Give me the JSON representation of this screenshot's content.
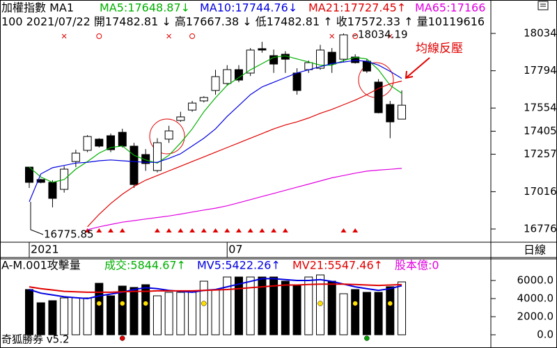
{
  "chart_data": [
    {
      "type": "candlestick",
      "header": [
        {
          "text": "加權指數 MA1",
          "color": "#000000"
        },
        {
          "text": "MA5:17648.87↓",
          "color": "#00b000"
        },
        {
          "text": "MA10:17744.76↓",
          "color": "#0000e0"
        },
        {
          "text": "MA21:17727.45↑",
          "color": "#e00000"
        },
        {
          "text": "MA65:17166",
          "color": "#e000e0"
        }
      ],
      "info": "100 2021/07/22 開17482.81 ↓ 高17667.38 ↓ 低17482.81 ↑ 收17572.33 ↑ 量10119616",
      "annotations": [
        "16775.85",
        "18034.19",
        "均線反壓"
      ],
      "period": "日線",
      "categories": [
        "2021",
        null,
        null,
        null,
        null,
        null,
        null,
        null,
        null,
        null,
        null,
        null,
        null,
        null,
        null,
        null,
        null,
        "07",
        null,
        null,
        null,
        null,
        null,
        null,
        null,
        null,
        null,
        null,
        null,
        null,
        null,
        null,
        null
      ],
      "open": [
        17174,
        17094,
        17076,
        17031,
        17210,
        17282,
        17354,
        17376,
        17398,
        17309,
        17255,
        17152,
        17354,
        17474,
        17541,
        17600,
        17667,
        17712,
        17801,
        17779,
        17936,
        17891,
        17900,
        17779,
        17801,
        17810,
        17913,
        17868,
        17882,
        17855,
        17721,
        17577,
        17482.81
      ],
      "high": [
        17174,
        17100,
        17090,
        17180,
        17286,
        17380,
        17360,
        17390,
        17421,
        17330,
        17290,
        17360,
        17440,
        17530,
        17600,
        17630,
        17800,
        17830,
        17830,
        17940,
        17980,
        17930,
        17920,
        17810,
        17860,
        17960,
        17940,
        18034.19,
        17900,
        17870,
        17740,
        17600,
        17667.38
      ],
      "low": [
        17040,
        17070,
        16915,
        17010,
        17174,
        17270,
        17300,
        17270,
        17300,
        17040,
        17150,
        17140,
        17330,
        17465,
        17530,
        17590,
        17640,
        17700,
        17720,
        17760,
        17910,
        17780,
        17780,
        17640,
        17780,
        17800,
        17780,
        17850,
        17840,
        17780,
        17520,
        17360,
        17482.81
      ],
      "close": [
        17076,
        17076,
        16973,
        17161,
        17264,
        17371,
        17309,
        17286,
        17309,
        17062,
        17197,
        17331,
        17407,
        17497,
        17586,
        17622,
        17756,
        17801,
        17734,
        17927,
        17927,
        17837,
        17868,
        17667,
        17846,
        17927,
        17837,
        18025,
        17846,
        17792,
        17524,
        17465,
        17572.33
      ],
      "series": [
        {
          "color": "#00b000",
          "values": [
            17174,
            17110,
            17076,
            17094,
            17161,
            17210,
            17264,
            17300,
            17310,
            17250,
            17220,
            17200,
            17250,
            17330,
            17420,
            17530,
            17620,
            17700,
            17750,
            17800,
            17840,
            17880,
            17890,
            17870,
            17850,
            17830,
            17830,
            17860,
            17880,
            17870,
            17800,
            17700,
            17648.87
          ]
        },
        {
          "color": "#0000e0",
          "values": [
            16951,
            17130,
            17170,
            17185,
            17200,
            17205,
            17215,
            17220,
            17215,
            17210,
            17205,
            17205,
            17230,
            17260,
            17310,
            17360,
            17420,
            17500,
            17570,
            17640,
            17690,
            17720,
            17750,
            17780,
            17800,
            17820,
            17840,
            17850,
            17860,
            17855,
            17830,
            17790,
            17744.76
          ]
        },
        {
          "color": "#e00000",
          "values": [
            null,
            null,
            null,
            null,
            null,
            16790,
            16870,
            16940,
            17000,
            17050,
            17090,
            17120,
            17150,
            17180,
            17210,
            17240,
            17270,
            17300,
            17330,
            17360,
            17390,
            17420,
            17445,
            17465,
            17490,
            17520,
            17545,
            17575,
            17605,
            17640,
            17680,
            17710,
            17727.45
          ]
        },
        {
          "color": "#e000e0",
          "values": [
            null,
            null,
            null,
            null,
            null,
            16771,
            16790,
            16805,
            16820,
            16830,
            16840,
            16850,
            16860,
            16872,
            16885,
            16898,
            16910,
            16925,
            16945,
            16965,
            16985,
            17005,
            17025,
            17045,
            17065,
            17085,
            17105,
            17120,
            17135,
            17148,
            17155,
            17160,
            17166
          ]
        }
      ],
      "ylim": [
        16691,
        18249
      ],
      "yticks": [
        18034,
        17794,
        17554,
        17405,
        17257,
        17016,
        16776
      ]
    },
    {
      "type": "bar",
      "header": [
        {
          "text": "A-M.001攻擊量",
          "color": "#000000"
        },
        {
          "text": "成交:5844.67↑",
          "color": "#00b000"
        },
        {
          "text": "MV5:5422.26↑",
          "color": "#0000e0"
        },
        {
          "text": "MV21:5547.46↑",
          "color": "#e00000"
        },
        {
          "text": "股本億:0",
          "color": "#e000e0"
        }
      ],
      "values": [
        5000,
        3538,
        3769,
        4077,
        4077,
        4077,
        5692,
        4308,
        5385,
        5231,
        5538,
        4308,
        4692,
        4692,
        4692,
        5923,
        5000,
        6385,
        6385,
        6385,
        6385,
        6385,
        5923,
        5462,
        6385,
        6615,
        5923,
        4538,
        5000,
        4692,
        4692,
        5308,
        5844.67
      ],
      "series": [
        {
          "color": "#0000e0",
          "values": [
            5000,
            4600,
            4400,
            4200,
            4100,
            4000,
            4300,
            4500,
            4700,
            5000,
            5200,
            5100,
            4900,
            4800,
            4700,
            4900,
            5000,
            5300,
            5600,
            5900,
            6200,
            6200,
            6100,
            6000,
            6000,
            6100,
            5900,
            5600,
            5300,
            5100,
            4900,
            5100,
            5422.26
          ]
        },
        {
          "color": "#e00000",
          "values": [
            5300,
            5100,
            4950,
            4800,
            4750,
            4700,
            4700,
            4700,
            4750,
            4800,
            4800,
            4850,
            4850,
            4850,
            4850,
            4900,
            4950,
            5000,
            5100,
            5200,
            5300,
            5400,
            5500,
            5500,
            5550,
            5600,
            5600,
            5600,
            5550,
            5500,
            5450,
            5500,
            5547.46
          ]
        }
      ],
      "ylim": [
        -1462,
        7000
      ],
      "yticks": [
        {
          "value": 6000,
          "label": "6000.0"
        },
        {
          "value": 4000,
          "label": "4000.0"
        },
        {
          "value": 2000,
          "label": "2000.0"
        },
        {
          "value": 0,
          "label": "0.0"
        }
      ]
    }
  ],
  "footer": "奇狐勝券 v5.2"
}
